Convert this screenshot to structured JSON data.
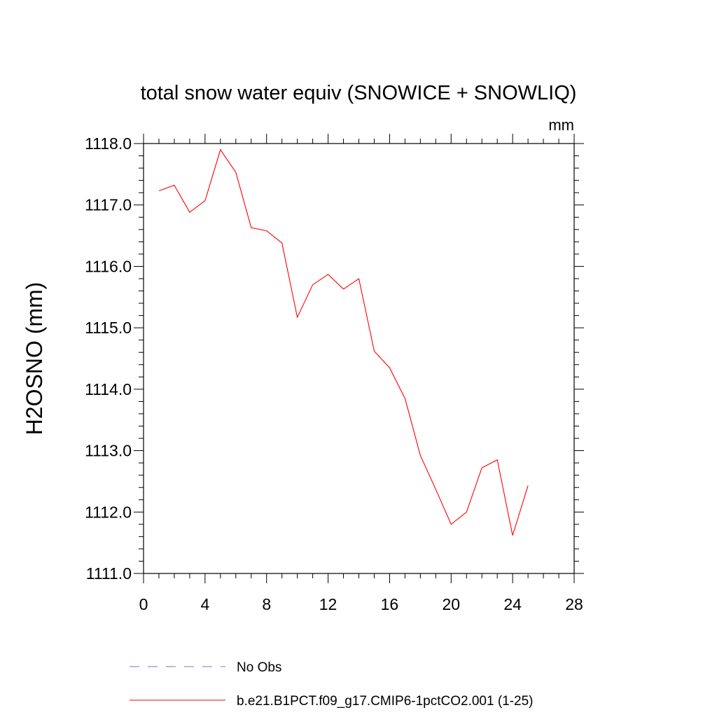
{
  "chart_data": {
    "type": "line",
    "title": "total snow water equiv (SNOWICE + SNOWLIQ)",
    "units_label": "mm",
    "xlabel": "",
    "ylabel": "H2OSNO  (mm)",
    "xlim": [
      0,
      28
    ],
    "ylim": [
      1111.0,
      1118.0
    ],
    "x_ticks": [
      0,
      4,
      8,
      12,
      16,
      20,
      24,
      28
    ],
    "x_tick_labels": [
      "0",
      "4",
      "8",
      "12",
      "16",
      "20",
      "24",
      "28"
    ],
    "y_ticks": [
      1111.0,
      1112.0,
      1113.0,
      1114.0,
      1115.0,
      1116.0,
      1117.0,
      1118.0
    ],
    "y_tick_labels": [
      "1111.0",
      "1112.0",
      "1113.0",
      "1114.0",
      "1115.0",
      "1116.0",
      "1117.0",
      "1118.0"
    ],
    "grid": false,
    "legend_position": "bottom",
    "series": [
      {
        "name": "No Obs",
        "color": "#7777cc",
        "style": "dashed",
        "x": [],
        "y": []
      },
      {
        "name": "b.e21.B1PCT.f09_g17.CMIP6-1pctCO2.001 (1-25)",
        "color": "#ff0000",
        "style": "solid",
        "x": [
          1,
          2,
          3,
          4,
          5,
          6,
          7,
          8,
          9,
          10,
          11,
          12,
          13,
          14,
          15,
          16,
          17,
          18,
          19,
          20,
          21,
          22,
          23,
          24,
          25
        ],
        "y": [
          1117.23,
          1117.32,
          1116.88,
          1117.07,
          1117.9,
          1117.53,
          1116.63,
          1116.58,
          1116.38,
          1115.17,
          1115.7,
          1115.87,
          1115.63,
          1115.8,
          1114.62,
          1114.35,
          1113.85,
          1112.92,
          1112.37,
          1111.8,
          1112.0,
          1112.72,
          1112.85,
          1111.62,
          1112.43
        ]
      }
    ]
  }
}
